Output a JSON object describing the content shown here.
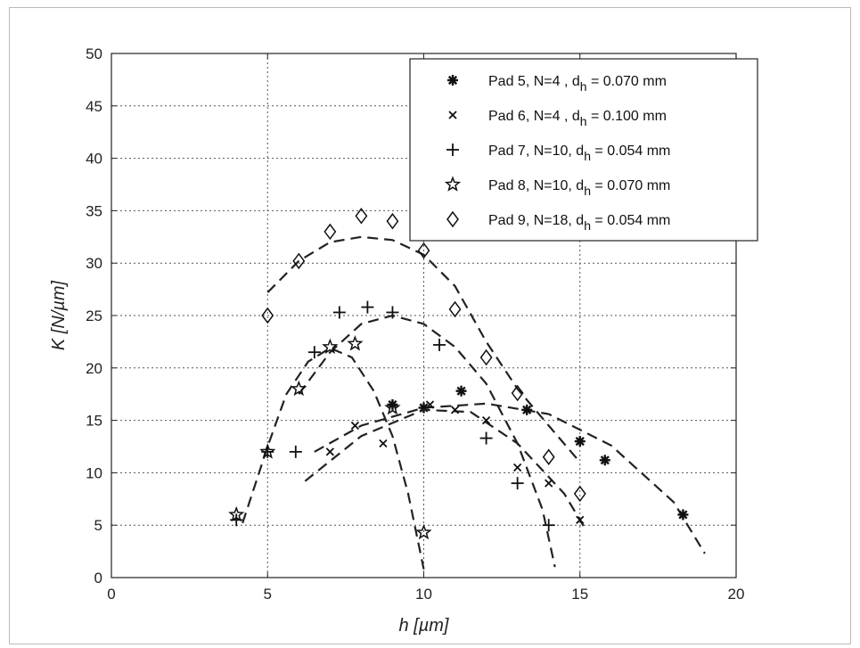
{
  "chart_data": {
    "type": "scatter",
    "xlabel": "h [µm]",
    "ylabel": "K [N/µm]",
    "xlim": [
      0,
      20
    ],
    "ylim": [
      0,
      50
    ],
    "xticks": [
      0,
      5,
      10,
      15,
      20
    ],
    "yticks": [
      0,
      5,
      10,
      15,
      20,
      25,
      30,
      35,
      40,
      45,
      50
    ],
    "grid": true,
    "legend_position": "top-right",
    "series": [
      {
        "name": "Pad 5, N=4 , d",
        "sub": "h",
        "suffix": " = 0.070 mm",
        "marker": "asterisk",
        "points": [
          [
            9.0,
            16.5
          ],
          [
            10.0,
            16.2
          ],
          [
            11.2,
            17.8
          ],
          [
            13.3,
            16.0
          ],
          [
            15.0,
            13.0
          ],
          [
            15.8,
            11.2
          ],
          [
            18.3,
            6.0
          ]
        ],
        "curve": [
          [
            6.5,
            12.0
          ],
          [
            8.0,
            14.5
          ],
          [
            10.0,
            16.2
          ],
          [
            12.0,
            16.6
          ],
          [
            14.0,
            15.6
          ],
          [
            16.0,
            12.6
          ],
          [
            18.0,
            7.2
          ],
          [
            19.0,
            2.3
          ]
        ]
      },
      {
        "name": "Pad 6, N=4 , d",
        "sub": "h",
        "suffix": " = 0.100 mm",
        "marker": "x",
        "points": [
          [
            7.0,
            12.0
          ],
          [
            7.8,
            14.5
          ],
          [
            8.7,
            12.8
          ],
          [
            10.2,
            16.5
          ],
          [
            11.0,
            16.0
          ],
          [
            12.0,
            15.0
          ],
          [
            13.0,
            10.5
          ],
          [
            14.0,
            9.0
          ],
          [
            15.0,
            5.5
          ]
        ],
        "curve": [
          [
            6.2,
            9.2
          ],
          [
            8.0,
            13.5
          ],
          [
            10.0,
            16.0
          ],
          [
            11.5,
            15.8
          ],
          [
            13.0,
            12.8
          ],
          [
            14.5,
            8.0
          ],
          [
            15.2,
            4.5
          ]
        ]
      },
      {
        "name": "Pad 7, N=10, d",
        "sub": "h",
        "suffix": " = 0.054 mm",
        "marker": "plus",
        "points": [
          [
            4.0,
            5.5
          ],
          [
            5.0,
            12.0
          ],
          [
            5.9,
            12.0
          ],
          [
            6.5,
            21.5
          ],
          [
            7.3,
            25.3
          ],
          [
            8.2,
            25.8
          ],
          [
            9.0,
            25.3
          ],
          [
            10.5,
            22.2
          ],
          [
            12.0,
            13.3
          ],
          [
            13.0,
            9.0
          ],
          [
            14.0,
            5.0
          ]
        ],
        "curve": [
          [
            6.0,
            17.5
          ],
          [
            7.0,
            21.5
          ],
          [
            8.0,
            24.2
          ],
          [
            9.0,
            25.0
          ],
          [
            10.0,
            24.2
          ],
          [
            11.0,
            22.0
          ],
          [
            12.0,
            18.5
          ],
          [
            13.0,
            12.8
          ],
          [
            13.8,
            6.5
          ],
          [
            14.2,
            1.0
          ]
        ]
      },
      {
        "name": "Pad 8, N=10, d",
        "sub": "h",
        "suffix": " = 0.070 mm",
        "marker": "star",
        "points": [
          [
            4.0,
            6.0
          ],
          [
            5.0,
            12.0
          ],
          [
            6.0,
            18.0
          ],
          [
            7.0,
            22.0
          ],
          [
            7.8,
            22.3
          ],
          [
            9.0,
            16.2
          ],
          [
            10.0,
            4.3
          ]
        ],
        "curve": [
          [
            4.2,
            5.2
          ],
          [
            5.0,
            12.5
          ],
          [
            5.6,
            17.5
          ],
          [
            6.3,
            20.6
          ],
          [
            7.0,
            21.9
          ],
          [
            7.7,
            21.0
          ],
          [
            8.4,
            17.8
          ],
          [
            9.0,
            13.5
          ],
          [
            9.5,
            8.0
          ],
          [
            10.0,
            0.8
          ]
        ]
      },
      {
        "name": "Pad 9, N=18, d",
        "sub": "h",
        "suffix": " = 0.054 mm",
        "marker": "diamond",
        "points": [
          [
            5.0,
            25.0
          ],
          [
            6.0,
            30.2
          ],
          [
            7.0,
            33.0
          ],
          [
            8.0,
            34.5
          ],
          [
            9.0,
            34.0
          ],
          [
            10.0,
            31.2
          ],
          [
            11.0,
            25.6
          ],
          [
            12.0,
            21.0
          ],
          [
            13.0,
            17.6
          ],
          [
            14.0,
            11.5
          ],
          [
            15.0,
            8.0
          ]
        ],
        "curve": [
          [
            5.0,
            27.2
          ],
          [
            6.0,
            30.2
          ],
          [
            7.0,
            32.0
          ],
          [
            8.0,
            32.5
          ],
          [
            9.0,
            32.2
          ],
          [
            10.0,
            30.8
          ],
          [
            11.0,
            27.8
          ],
          [
            12.0,
            22.5
          ],
          [
            13.0,
            18.0
          ],
          [
            14.0,
            14.5
          ],
          [
            15.0,
            11.0
          ]
        ]
      }
    ]
  }
}
